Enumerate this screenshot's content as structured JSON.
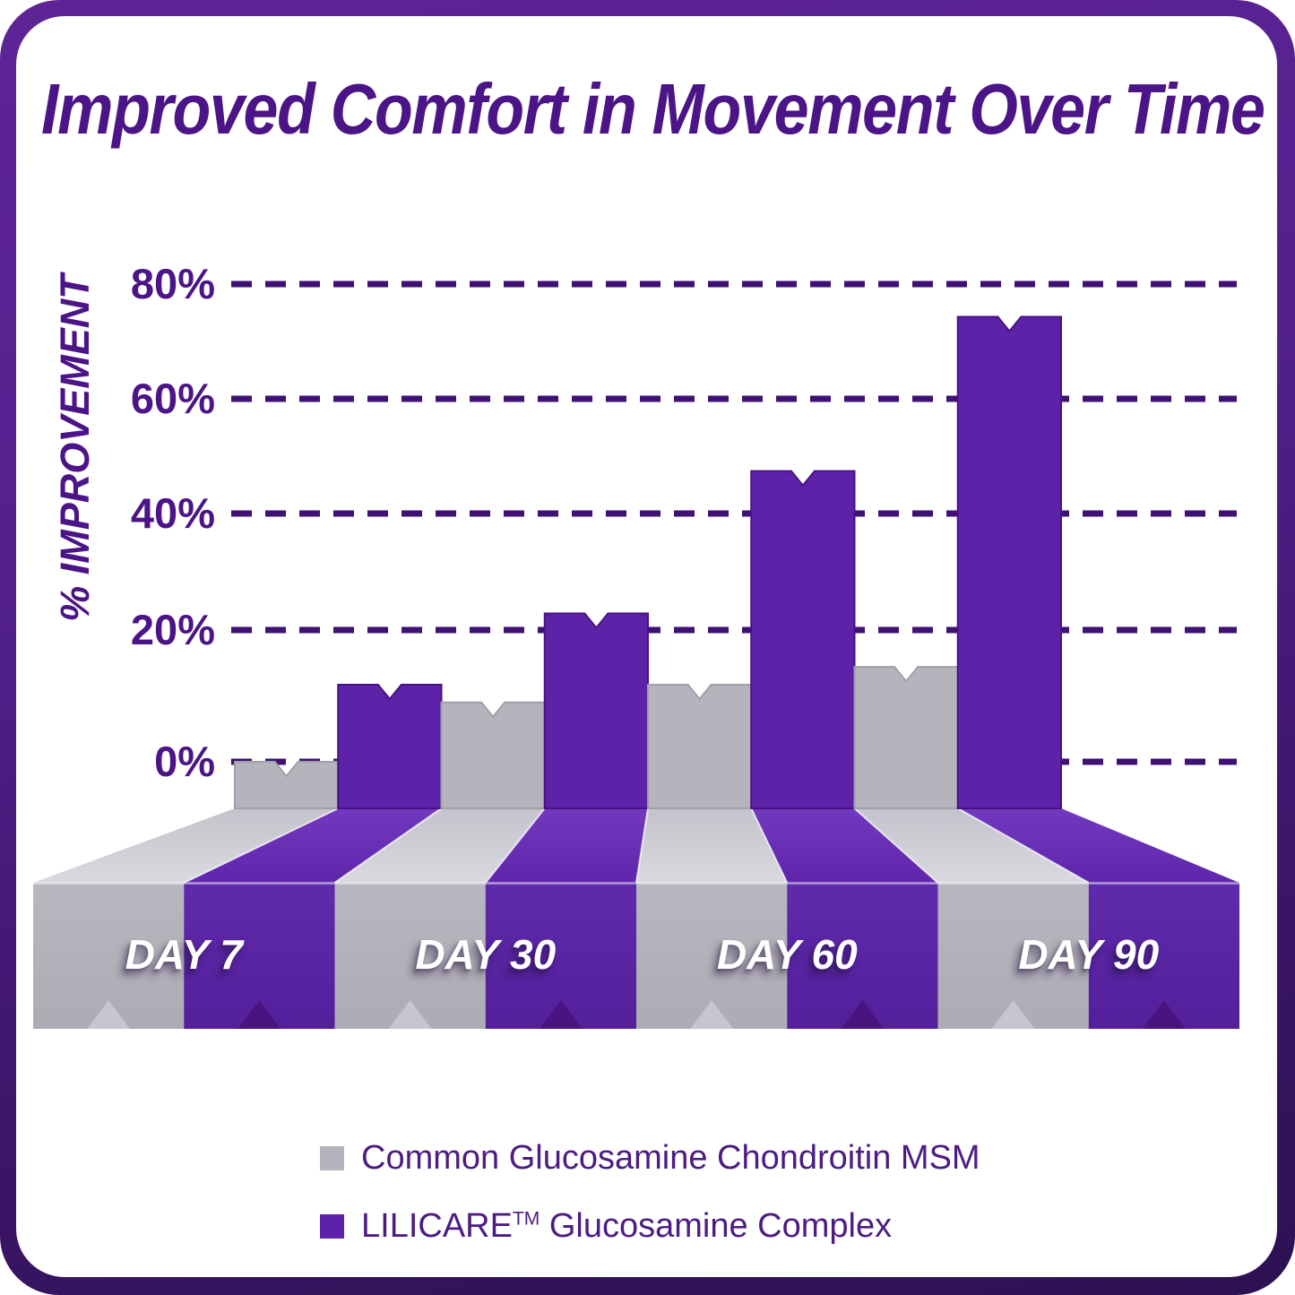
{
  "title": "Improved Comfort in Movement Over Time",
  "y_axis": {
    "label": "% IMPROVEMENT"
  },
  "legend": [
    {
      "label": "Common Glucosamine Chondroitin MSM",
      "swatch": "#b5b3bb"
    },
    {
      "brand": "LILICARE",
      "tm": "TM",
      "rest": " Glucosamine Complex",
      "swatch": "#5c23a8"
    }
  ],
  "chart_data": {
    "type": "bar",
    "title": "Improved Comfort in Movement Over Time",
    "ylabel": "% IMPROVEMENT",
    "categories": [
      "DAY 7",
      "DAY 30",
      "DAY 60",
      "DAY 90"
    ],
    "series": [
      {
        "name": "Common Glucosamine Chondroitin MSM",
        "values": [
          0,
          10,
          13,
          16
        ]
      },
      {
        "name": "LILICARE Glucosamine Complex",
        "values": [
          13,
          25,
          49,
          75
        ]
      }
    ],
    "ylim": [
      0,
      80
    ],
    "yticks": [
      {
        "label": "80%",
        "value": 80
      },
      {
        "label": "60%",
        "value": 60
      },
      {
        "label": "40%",
        "value": 40
      },
      {
        "label": "20%",
        "value": 20
      },
      {
        "label": "0%",
        "value": 0
      }
    ],
    "grid": "dashed horizontal",
    "legend_position": "bottom",
    "style": "3d ribbon bars flowing to front banner with notched ends"
  },
  "colors": {
    "grid": "#3e1173",
    "axis_text": "#4b1487",
    "title_text": "#4b1487",
    "legend_text": "#4c1c82",
    "day_label": "#ffffff",
    "frame_top": "#5e2496",
    "frame_bottom": "#2d1152",
    "common": {
      "face": "#b5b3bb",
      "edge": "#a19fa7",
      "ramp_back": "#c4c2ca",
      "ramp_front": "#dbd9e0",
      "front_top": "#b8b6be",
      "front_bottom": "#adabb3",
      "notch": "#c7c5cd"
    },
    "lilicare": {
      "face": "#5c23a8",
      "edge": "#4a1184",
      "ramp_back": "#7139bd",
      "ramp_front": "#5f26ac",
      "front_top": "#5f2bac",
      "front_bottom": "#531f9b",
      "notch": "#481580"
    }
  }
}
